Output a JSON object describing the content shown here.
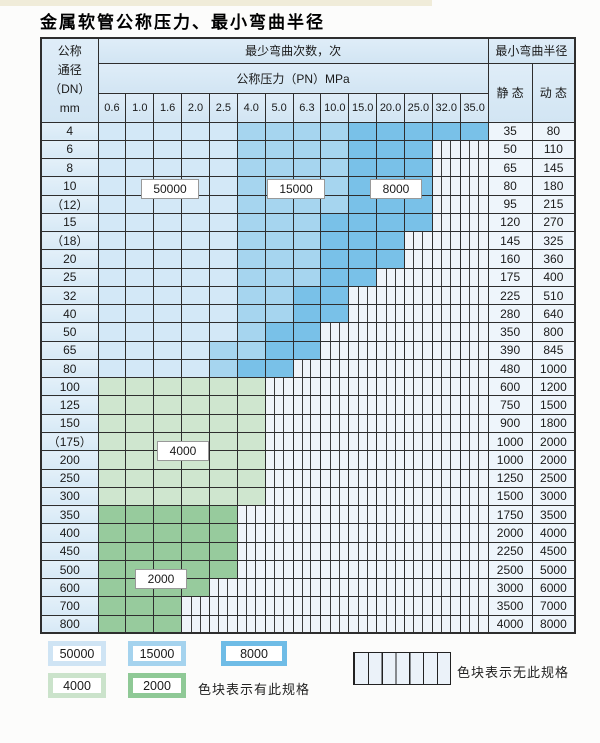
{
  "title": "金属软管公称压力、最小弯曲半径",
  "table": {
    "corner": {
      "line1": "公称",
      "line2": "通径",
      "line3": "（DN）",
      "line4": "mm"
    },
    "bend_cycles_header": "最少弯曲次数，次",
    "pressure_header": "公称压力（PN）MPa",
    "radius_header": "最小弯曲半径",
    "static_header": "静 态",
    "dynamic_header": "动 态",
    "pressure_values": [
      "0.6",
      "1.0",
      "1.6",
      "2.0",
      "2.5",
      "4.0",
      "5.0",
      "6.3",
      "10.0",
      "15.0",
      "20.0",
      "25.0",
      "32.0",
      "35.0"
    ],
    "rows": [
      {
        "dn": "4",
        "bands": [
          [
            "b1",
            5
          ],
          [
            "b2",
            9
          ],
          [
            "b3",
            14
          ]
        ],
        "static": "35",
        "dynamic": "80"
      },
      {
        "dn": "6",
        "bands": [
          [
            "b1",
            5
          ],
          [
            "b2",
            9
          ],
          [
            "b3",
            12
          ]
        ],
        "static": "50",
        "dynamic": "110"
      },
      {
        "dn": "8",
        "bands": [
          [
            "b1",
            5
          ],
          [
            "b2",
            9
          ],
          [
            "b3",
            12
          ]
        ],
        "static": "65",
        "dynamic": "145"
      },
      {
        "dn": "10",
        "bands": [
          [
            "b1",
            5
          ],
          [
            "b2",
            9
          ],
          [
            "b3",
            12
          ]
        ],
        "static": "80",
        "dynamic": "180"
      },
      {
        "dn": "（12）",
        "bands": [
          [
            "b1",
            5
          ],
          [
            "b2",
            9
          ],
          [
            "b3",
            12
          ]
        ],
        "static": "95",
        "dynamic": "215"
      },
      {
        "dn": "15",
        "bands": [
          [
            "b1",
            5
          ],
          [
            "b2",
            8
          ],
          [
            "b3",
            12
          ]
        ],
        "static": "120",
        "dynamic": "270"
      },
      {
        "dn": "（18）",
        "bands": [
          [
            "b1",
            5
          ],
          [
            "b2",
            8
          ],
          [
            "b3",
            11
          ]
        ],
        "static": "145",
        "dynamic": "325"
      },
      {
        "dn": "20",
        "bands": [
          [
            "b1",
            5
          ],
          [
            "b2",
            8
          ],
          [
            "b3",
            11
          ]
        ],
        "static": "160",
        "dynamic": "360"
      },
      {
        "dn": "25",
        "bands": [
          [
            "b1",
            5
          ],
          [
            "b2",
            8
          ],
          [
            "b3",
            10
          ]
        ],
        "static": "175",
        "dynamic": "400"
      },
      {
        "dn": "32",
        "bands": [
          [
            "b1",
            5
          ],
          [
            "b2",
            7
          ],
          [
            "b3",
            9
          ]
        ],
        "static": "225",
        "dynamic": "510"
      },
      {
        "dn": "40",
        "bands": [
          [
            "b1",
            5
          ],
          [
            "b2",
            7
          ],
          [
            "b3",
            9
          ]
        ],
        "static": "280",
        "dynamic": "640"
      },
      {
        "dn": "50",
        "bands": [
          [
            "b1",
            5
          ],
          [
            "b2",
            6
          ],
          [
            "b3",
            8
          ]
        ],
        "static": "350",
        "dynamic": "800"
      },
      {
        "dn": "65",
        "bands": [
          [
            "b1",
            4
          ],
          [
            "b2",
            6
          ],
          [
            "b3",
            8
          ]
        ],
        "static": "390",
        "dynamic": "845"
      },
      {
        "dn": "80",
        "bands": [
          [
            "b1",
            4
          ],
          [
            "b2",
            5
          ],
          [
            "b3",
            7
          ]
        ],
        "static": "480",
        "dynamic": "1000"
      },
      {
        "dn": "100",
        "bands": [
          [
            "g1",
            6
          ]
        ],
        "static": "600",
        "dynamic": "1200"
      },
      {
        "dn": "125",
        "bands": [
          [
            "g1",
            6
          ]
        ],
        "static": "750",
        "dynamic": "1500"
      },
      {
        "dn": "150",
        "bands": [
          [
            "g1",
            6
          ]
        ],
        "static": "900",
        "dynamic": "1800"
      },
      {
        "dn": "（175）",
        "bands": [
          [
            "g1",
            6
          ]
        ],
        "static": "1000",
        "dynamic": "2000"
      },
      {
        "dn": "200",
        "bands": [
          [
            "g1",
            6
          ]
        ],
        "static": "1000",
        "dynamic": "2000"
      },
      {
        "dn": "250",
        "bands": [
          [
            "g1",
            6
          ]
        ],
        "static": "1250",
        "dynamic": "2500"
      },
      {
        "dn": "300",
        "bands": [
          [
            "g1",
            6
          ]
        ],
        "static": "1500",
        "dynamic": "3000"
      },
      {
        "dn": "350",
        "bands": [
          [
            "g2",
            5
          ]
        ],
        "static": "1750",
        "dynamic": "3500"
      },
      {
        "dn": "400",
        "bands": [
          [
            "g2",
            5
          ]
        ],
        "static": "2000",
        "dynamic": "4000"
      },
      {
        "dn": "450",
        "bands": [
          [
            "g2",
            5
          ]
        ],
        "static": "2250",
        "dynamic": "4500"
      },
      {
        "dn": "500",
        "bands": [
          [
            "g2",
            5
          ]
        ],
        "static": "2500",
        "dynamic": "5000"
      },
      {
        "dn": "600",
        "bands": [
          [
            "g2",
            4
          ]
        ],
        "static": "3000",
        "dynamic": "6000"
      },
      {
        "dn": "700",
        "bands": [
          [
            "g2",
            3
          ]
        ],
        "static": "3500",
        "dynamic": "7000"
      },
      {
        "dn": "800",
        "bands": [
          [
            "g2",
            3
          ]
        ],
        "static": "4000",
        "dynamic": "8000"
      }
    ]
  },
  "overlays": [
    {
      "text": "50000"
    },
    {
      "text": "15000"
    },
    {
      "text": "8000"
    },
    {
      "text": "4000"
    },
    {
      "text": "2000"
    }
  ],
  "legend": {
    "items": [
      {
        "label": "50000",
        "color": "#cfe4f4"
      },
      {
        "label": "15000",
        "color": "#a5d3ee"
      },
      {
        "label": "8000",
        "color": "#6fbce6"
      },
      {
        "label": "4000",
        "color": "#cbe3cb"
      },
      {
        "label": "2000",
        "color": "#8fc996"
      }
    ],
    "has_spec_note": "色块表示有此规格",
    "no_spec_note": "色块表示无此规格"
  },
  "colors": {
    "b1": "#d3e8f7",
    "b2": "#a6d5ef",
    "b3": "#79c1e8",
    "g1": "#cfe6cf",
    "g2": "#97cb9d",
    "hatch_bg": "#eff4f9",
    "header_bg": "#d9e9f6",
    "border": "#2e2e2e"
  }
}
